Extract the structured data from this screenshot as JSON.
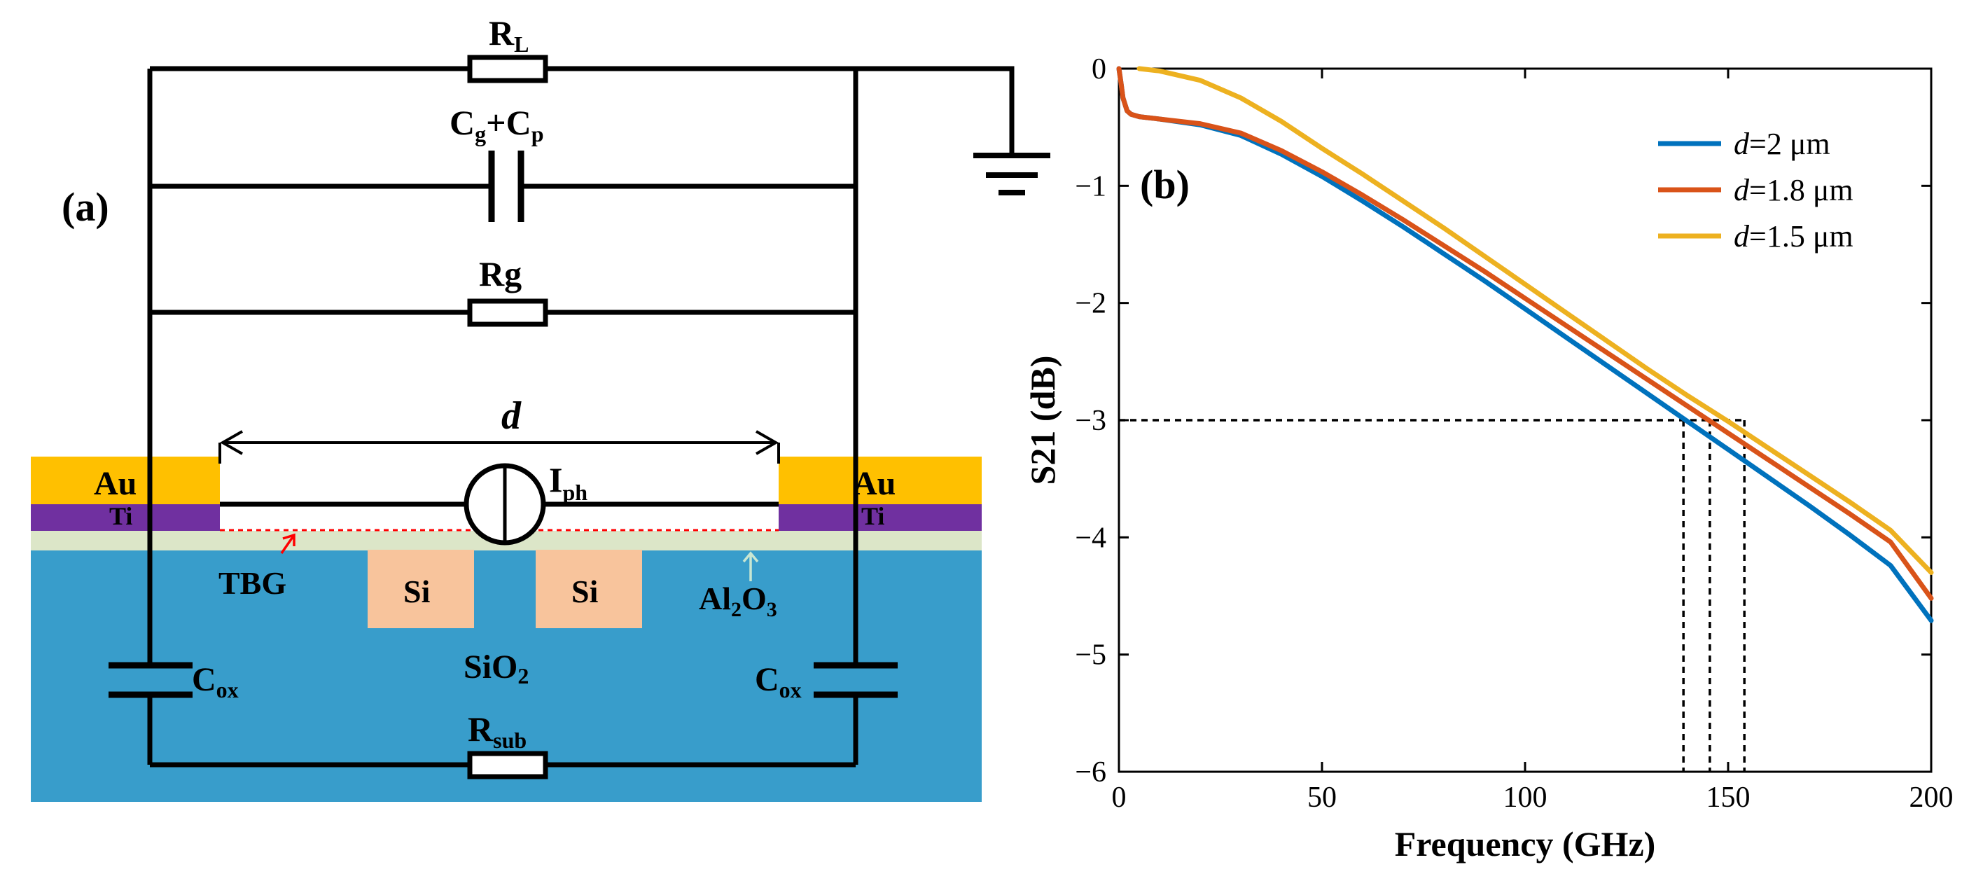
{
  "panel_a": {
    "label": "(a)",
    "resistor_load": {
      "main": "R",
      "sub": "L"
    },
    "capacitor_gp": {
      "c1": "C",
      "s1": "g",
      "plus": "+C",
      "s2": "p"
    },
    "resistor_g": "Rg",
    "photocurrent": {
      "main": "I",
      "sub": "ph"
    },
    "spacing_label": "d",
    "layer_au_left": "Au",
    "layer_ti_left": "Ti",
    "layer_au_right": "Au",
    "layer_ti_right": "Ti",
    "tbg_label": "TBG",
    "si_left": "Si",
    "si_right": "Si",
    "oxide": {
      "main": "SiO",
      "sub": "2"
    },
    "al2o3": {
      "a": "Al",
      "s1": "2",
      "b": "O",
      "s2": "3"
    },
    "cox_left": {
      "main": "C",
      "sub": "ox"
    },
    "cox_right": {
      "main": "C",
      "sub": "ox"
    },
    "r_sub": {
      "main": "R",
      "sub": "sub"
    },
    "colors": {
      "gold": "#ffc000",
      "titanium": "#7030a0",
      "substrate": "#389dcb",
      "alumina": "#dce6c8",
      "silicon": "#f8c49c",
      "tbg": "#ff0000",
      "al2o3_text": "#c8e6d2"
    }
  },
  "panel_b": {
    "label": "(b)"
  },
  "chart_data": {
    "type": "line",
    "title": "",
    "xlabel": "Frequency (GHz)",
    "ylabel": "S21 (dB)",
    "xlim": [
      0,
      200
    ],
    "ylim": [
      -6,
      0
    ],
    "xticks": [
      0,
      50,
      100,
      150,
      200
    ],
    "yticks": [
      0,
      -1,
      -2,
      -3,
      -4,
      -5,
      -6
    ],
    "xtick_labels": [
      "0",
      "50",
      "100",
      "150",
      "200"
    ],
    "ytick_labels": [
      "0",
      "−1",
      "−2",
      "−3",
      "−4",
      "−5",
      "−6"
    ],
    "grid": false,
    "legend_position": "top-right",
    "series": [
      {
        "name": "d=2 μm",
        "legend_var": "d",
        "legend_rest": "=2 μm",
        "color": "#0072bd",
        "x": [
          0,
          0.5,
          1,
          2,
          3,
          5,
          10,
          20,
          30,
          40,
          50,
          60,
          70,
          80,
          90,
          100,
          110,
          120,
          130,
          140,
          150,
          160,
          170,
          180,
          190,
          200
        ],
        "y": [
          0,
          -0.12,
          -0.25,
          -0.36,
          -0.39,
          -0.41,
          -0.43,
          -0.48,
          -0.57,
          -0.73,
          -0.92,
          -1.13,
          -1.35,
          -1.58,
          -1.81,
          -2.05,
          -2.29,
          -2.53,
          -2.77,
          -3.01,
          -3.25,
          -3.49,
          -3.73,
          -3.98,
          -4.24,
          -4.71
        ]
      },
      {
        "name": "d=1.8 μm",
        "legend_var": "d",
        "legend_rest": "=1.8 μm",
        "color": "#d95319",
        "x": [
          0,
          0.5,
          1,
          2,
          3,
          5,
          10,
          20,
          30,
          40,
          50,
          60,
          70,
          80,
          90,
          100,
          110,
          120,
          130,
          140,
          150,
          160,
          170,
          180,
          190,
          200
        ],
        "y": [
          0,
          -0.12,
          -0.25,
          -0.36,
          -0.39,
          -0.41,
          -0.43,
          -0.47,
          -0.55,
          -0.7,
          -0.88,
          -1.08,
          -1.29,
          -1.51,
          -1.73,
          -1.96,
          -2.19,
          -2.42,
          -2.65,
          -2.88,
          -3.11,
          -3.34,
          -3.57,
          -3.8,
          -4.04,
          -4.52
        ]
      },
      {
        "name": "d=1.5 μm",
        "legend_var": "d",
        "legend_rest": "=1.5 μm",
        "color": "#edb120",
        "x": [
          5,
          10,
          20,
          30,
          40,
          50,
          60,
          70,
          80,
          90,
          100,
          110,
          120,
          130,
          140,
          150,
          160,
          170,
          180,
          190,
          200
        ],
        "y": [
          0,
          -0.02,
          -0.1,
          -0.25,
          -0.45,
          -0.68,
          -0.9,
          -1.13,
          -1.36,
          -1.6,
          -1.84,
          -2.08,
          -2.32,
          -2.56,
          -2.79,
          -3.01,
          -3.24,
          -3.47,
          -3.7,
          -3.94,
          -4.3
        ]
      }
    ],
    "annotations": {
      "hline_y": -3,
      "vlines": [
        139,
        145.5,
        154
      ]
    }
  }
}
